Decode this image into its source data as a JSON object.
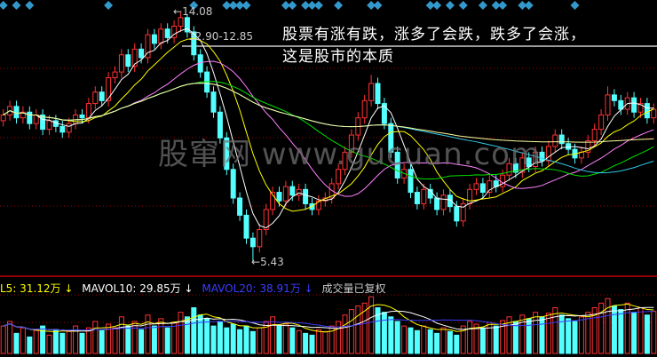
{
  "annotation": {
    "line1": "股票有涨有跌，涨多了会跌，跌多了会涨，",
    "line2": "这是股市的本质"
  },
  "watermark": "股窜网 www.gucuan.com",
  "volume_legend": {
    "mavol5": "L5: 31.12万 ↓",
    "mavol10": "MAVOL10: 29.85万 ↓",
    "mavol20": "MAVOL20: 38.91万 ↓",
    "note": "成交量已复权"
  },
  "colors": {
    "background": "#000000",
    "up": "#ff3232",
    "down": "#54ffff",
    "ma5": "#ffffff",
    "ma10": "#ffff00",
    "ma20": "#ff80ff",
    "ma30": "#00e000",
    "ma60": "#30c8e8",
    "ma120": "#ffffa0",
    "mavol5": "#ffff00",
    "mavol10": "#ffffff",
    "mavol20": "#3c3cff",
    "marker": "#3399cc"
  },
  "chart_data": {
    "type": "candlestick",
    "price_range": [
      5.43,
      14.08
    ],
    "high_label": "14.08",
    "low_label": "5.43",
    "level_label": "12.90-12.85",
    "level_price": 12.9,
    "ma_periods": [
      5,
      10,
      20,
      30,
      60,
      120
    ],
    "marker_indices": [
      0,
      2,
      4,
      16,
      29,
      34,
      35,
      36,
      37,
      43,
      44,
      46,
      47,
      48,
      51,
      56,
      57,
      65,
      66,
      68,
      70,
      73,
      75,
      76,
      79,
      80,
      87
    ],
    "open": [
      10.3,
      10.5,
      10.8,
      10.4,
      10.6,
      10.2,
      10.5,
      10.0,
      10.3,
      10.1,
      9.9,
      10.2,
      10.5,
      10.4,
      10.9,
      11.3,
      11.0,
      11.8,
      12.0,
      12.6,
      12.2,
      12.8,
      12.5,
      13.3,
      13.0,
      13.5,
      13.2,
      13.6,
      13.9,
      13.4,
      12.6,
      12.0,
      11.3,
      10.6,
      9.7,
      8.6,
      7.6,
      7.0,
      6.2,
      5.9,
      6.5,
      7.2,
      7.8,
      7.5,
      8.0,
      7.7,
      7.9,
      7.4,
      7.2,
      7.5,
      7.6,
      8.1,
      8.6,
      9.2,
      9.8,
      10.4,
      11.0,
      11.6,
      10.9,
      10.2,
      9.2,
      8.3,
      8.6,
      7.8,
      7.4,
      7.9,
      7.6,
      7.2,
      7.7,
      7.3,
      6.8,
      7.4,
      7.9,
      8.1,
      7.8,
      8.2,
      8.0,
      8.4,
      8.8,
      8.5,
      9.0,
      8.7,
      9.2,
      8.9,
      9.4,
      9.8,
      9.5,
      9.3,
      9.0,
      9.2,
      9.6,
      10.0,
      10.5,
      11.2,
      11.0,
      10.7,
      11.1,
      10.6,
      10.9,
      10.4
    ],
    "high": [
      10.7,
      11.0,
      11.0,
      10.8,
      10.8,
      10.7,
      10.7,
      10.5,
      10.5,
      10.3,
      10.4,
      10.7,
      10.7,
      11.1,
      11.5,
      11.5,
      12.0,
      12.2,
      12.8,
      12.8,
      13.0,
      13.0,
      13.5,
      13.5,
      13.7,
      13.7,
      13.8,
      14.08,
      14.0,
      13.6,
      12.8,
      12.2,
      11.5,
      10.8,
      9.9,
      8.8,
      7.8,
      7.2,
      6.4,
      6.7,
      7.4,
      8.0,
      8.0,
      8.2,
      8.2,
      8.1,
      8.1,
      7.6,
      7.7,
      7.8,
      8.3,
      8.8,
      9.4,
      10.0,
      10.6,
      11.2,
      11.9,
      11.8,
      11.1,
      10.4,
      9.4,
      8.8,
      8.8,
      8.0,
      8.1,
      8.1,
      7.8,
      7.9,
      7.9,
      7.5,
      7.6,
      8.1,
      8.3,
      8.3,
      8.4,
      8.4,
      8.6,
      9.0,
      9.0,
      9.2,
      9.2,
      9.4,
      9.4,
      9.6,
      10.0,
      10.0,
      9.7,
      9.5,
      9.4,
      9.8,
      10.2,
      10.7,
      11.5,
      11.4,
      11.2,
      11.3,
      11.3,
      11.1,
      11.1,
      10.9
    ],
    "low": [
      10.1,
      10.3,
      10.2,
      10.2,
      10.0,
      10.0,
      9.8,
      9.8,
      9.9,
      9.7,
      9.7,
      10.0,
      10.2,
      10.2,
      10.7,
      10.8,
      10.8,
      11.6,
      11.8,
      12.0,
      12.0,
      12.3,
      12.3,
      12.8,
      12.8,
      13.0,
      13.0,
      13.4,
      13.2,
      12.4,
      11.8,
      11.1,
      10.4,
      9.5,
      8.4,
      7.4,
      6.8,
      6.0,
      5.43,
      5.7,
      6.3,
      7.0,
      7.3,
      7.3,
      7.5,
      7.5,
      7.2,
      7.0,
      7.0,
      7.3,
      7.4,
      7.9,
      8.4,
      9.0,
      9.6,
      10.2,
      10.8,
      10.7,
      10.0,
      9.0,
      8.1,
      8.1,
      7.6,
      7.2,
      7.2,
      7.4,
      7.0,
      7.0,
      7.1,
      6.6,
      6.6,
      7.2,
      7.7,
      7.6,
      7.6,
      7.8,
      7.8,
      8.2,
      8.3,
      8.3,
      8.5,
      8.5,
      8.7,
      8.7,
      9.2,
      9.3,
      9.1,
      8.8,
      8.8,
      9.0,
      9.4,
      9.8,
      10.3,
      10.8,
      10.5,
      10.5,
      10.4,
      10.4,
      10.2,
      10.2
    ],
    "close": [
      10.5,
      10.8,
      10.4,
      10.6,
      10.2,
      10.5,
      10.0,
      10.3,
      10.1,
      9.9,
      10.2,
      10.5,
      10.4,
      10.9,
      11.3,
      11.0,
      11.8,
      12.0,
      12.6,
      12.2,
      12.8,
      12.5,
      13.3,
      13.0,
      13.5,
      13.2,
      13.6,
      13.9,
      13.4,
      12.6,
      12.0,
      11.3,
      10.6,
      9.7,
      8.6,
      7.6,
      7.0,
      6.2,
      5.9,
      6.5,
      7.2,
      7.8,
      7.5,
      8.0,
      7.7,
      7.9,
      7.4,
      7.2,
      7.5,
      7.6,
      8.1,
      8.6,
      9.2,
      9.8,
      10.4,
      11.0,
      11.6,
      10.9,
      10.2,
      9.2,
      8.3,
      8.6,
      7.8,
      7.4,
      7.9,
      7.6,
      7.2,
      7.7,
      7.3,
      6.8,
      7.4,
      7.9,
      8.1,
      7.8,
      8.2,
      8.0,
      8.4,
      8.8,
      8.5,
      9.0,
      8.7,
      9.2,
      8.9,
      9.4,
      9.8,
      9.5,
      9.3,
      9.0,
      9.2,
      9.6,
      10.0,
      10.5,
      11.2,
      11.0,
      10.7,
      11.1,
      10.6,
      10.9,
      10.4,
      10.7
    ],
    "volume_unit": "万",
    "volume": [
      30,
      35,
      22,
      28,
      18,
      25,
      30,
      20,
      26,
      22,
      24,
      30,
      22,
      28,
      35,
      25,
      32,
      28,
      40,
      30,
      35,
      26,
      42,
      30,
      38,
      28,
      34,
      45,
      40,
      50,
      42,
      38,
      30,
      35,
      28,
      32,
      26,
      30,
      24,
      28,
      35,
      40,
      30,
      32,
      28,
      25,
      22,
      20,
      26,
      24,
      30,
      35,
      42,
      48,
      52,
      55,
      62,
      50,
      45,
      40,
      35,
      30,
      28,
      25,
      30,
      26,
      22,
      28,
      24,
      20,
      30,
      35,
      32,
      28,
      34,
      30,
      36,
      40,
      35,
      42,
      38,
      45,
      40,
      44,
      50,
      42,
      38,
      35,
      40,
      45,
      50,
      55,
      60,
      52,
      48,
      55,
      45,
      50,
      42,
      46
    ],
    "mavol_periods": [
      5,
      10,
      20
    ]
  }
}
